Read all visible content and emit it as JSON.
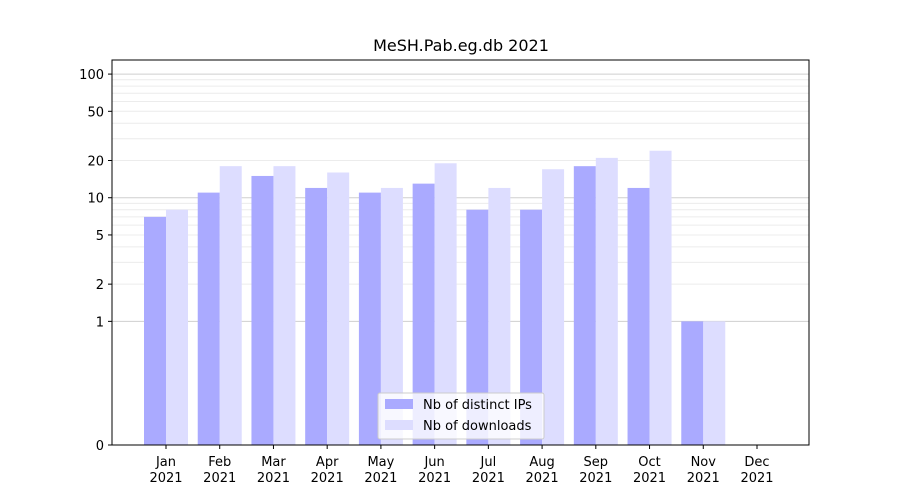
{
  "chart_data": {
    "type": "bar",
    "title": "MeSH.Pab.eg.db 2021",
    "xlabel": "",
    "ylabel": "",
    "y_scale": "symlog",
    "ylim": [
      0,
      130
    ],
    "y_ticks": [
      0,
      1,
      2,
      5,
      10,
      20,
      50,
      100
    ],
    "categories": [
      [
        "Jan",
        "2021"
      ],
      [
        "Feb",
        "2021"
      ],
      [
        "Mar",
        "2021"
      ],
      [
        "Apr",
        "2021"
      ],
      [
        "May",
        "2021"
      ],
      [
        "Jun",
        "2021"
      ],
      [
        "Jul",
        "2021"
      ],
      [
        "Aug",
        "2021"
      ],
      [
        "Sep",
        "2021"
      ],
      [
        "Oct",
        "2021"
      ],
      [
        "Nov",
        "2021"
      ],
      [
        "Dec",
        "2021"
      ]
    ],
    "series": [
      {
        "name": "Nb of distinct IPs",
        "color": "#aaaaff",
        "values": [
          7,
          11,
          15,
          12,
          11,
          13,
          8,
          8,
          18,
          12,
          1,
          0
        ]
      },
      {
        "name": "Nb of downloads",
        "color": "#ddddff",
        "values": [
          8,
          18,
          18,
          16,
          12,
          19,
          12,
          17,
          21,
          24,
          1,
          0
        ]
      }
    ],
    "grid": true,
    "legend_position": "lower-center"
  }
}
